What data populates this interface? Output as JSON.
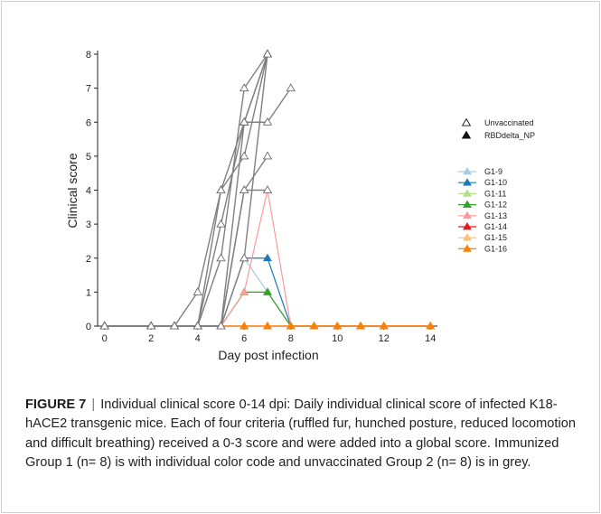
{
  "chart_data": {
    "type": "line",
    "xlabel": "Day post infection",
    "ylabel": "Clinical score",
    "xlim": [
      -0.3,
      14.3
    ],
    "ylim": [
      0,
      8
    ],
    "xticks": [
      0,
      2,
      4,
      6,
      8,
      10,
      12,
      14
    ],
    "yticks": [
      0,
      1,
      2,
      3,
      4,
      5,
      6,
      7,
      8
    ],
    "x": [
      0,
      2,
      3,
      4,
      5,
      6,
      7,
      8,
      9,
      10,
      11,
      12,
      14
    ],
    "group_legend": [
      {
        "label": "Unvaccinated",
        "marker": "open-triangle"
      },
      {
        "label": "RBDdelta_NP",
        "marker": "filled-triangle"
      }
    ],
    "unvaccinated_series": [
      {
        "color": "#808080",
        "x": [
          0,
          2,
          3,
          4,
          5,
          6,
          7
        ],
        "values": [
          0,
          0,
          0,
          0,
          2,
          7,
          8
        ]
      },
      {
        "color": "#808080",
        "x": [
          0,
          2,
          3,
          4,
          5,
          6,
          7
        ],
        "values": [
          0,
          0,
          0,
          0,
          3,
          6,
          8
        ]
      },
      {
        "color": "#808080",
        "x": [
          0,
          2,
          3,
          4,
          5,
          6,
          7
        ],
        "values": [
          0,
          0,
          0,
          1,
          4,
          5,
          8
        ]
      },
      {
        "color": "#808080",
        "x": [
          0,
          2,
          3,
          4,
          5,
          6,
          7,
          8
        ],
        "values": [
          0,
          0,
          0,
          0,
          4,
          6,
          6,
          7
        ]
      },
      {
        "color": "#808080",
        "x": [
          0,
          2,
          3,
          4,
          5,
          6,
          7
        ],
        "values": [
          0,
          0,
          0,
          0,
          0,
          4,
          5
        ]
      },
      {
        "color": "#808080",
        "x": [
          0,
          2,
          3,
          4,
          5,
          6,
          7
        ],
        "values": [
          0,
          0,
          0,
          0,
          0,
          2,
          8
        ]
      },
      {
        "color": "#808080",
        "x": [
          0,
          2,
          3,
          4,
          5,
          6,
          7
        ],
        "values": [
          0,
          0,
          0,
          0,
          0,
          6,
          8
        ]
      },
      {
        "color": "#808080",
        "x": [
          0,
          2,
          3,
          4,
          5,
          6,
          7
        ],
        "values": [
          0,
          0,
          0,
          0,
          0,
          4,
          4
        ]
      }
    ],
    "series": [
      {
        "name": "G1-9",
        "color": "#a6cee3",
        "values": [
          0,
          0,
          0,
          0,
          0,
          2,
          1,
          0,
          0,
          0,
          0,
          0,
          0
        ]
      },
      {
        "name": "G1-10",
        "color": "#1f78b4",
        "values": [
          0,
          0,
          0,
          0,
          0,
          2,
          2,
          0,
          0,
          0,
          0,
          0,
          0
        ]
      },
      {
        "name": "G1-11",
        "color": "#b2df8a",
        "values": [
          0,
          0,
          0,
          0,
          0,
          1,
          1,
          0,
          0,
          0,
          0,
          0,
          0
        ]
      },
      {
        "name": "G1-12",
        "color": "#33a02c",
        "values": [
          0,
          0,
          0,
          0,
          0,
          1,
          1,
          0,
          0,
          0,
          0,
          0,
          0
        ]
      },
      {
        "name": "G1-13",
        "color": "#fb9a99",
        "values": [
          0,
          0,
          0,
          0,
          0,
          1,
          4,
          0,
          0,
          0,
          0,
          0,
          0
        ]
      },
      {
        "name": "G1-14",
        "color": "#e31a1c",
        "values": [
          0,
          0,
          0,
          0,
          0,
          0,
          0,
          0,
          0,
          0,
          0,
          0,
          0
        ]
      },
      {
        "name": "G1-15",
        "color": "#fdbf6f",
        "values": [
          0,
          0,
          0,
          0,
          0,
          0,
          0,
          0,
          0,
          0,
          0,
          0,
          0
        ]
      },
      {
        "name": "G1-16",
        "color": "#ff7f00",
        "values": [
          0,
          0,
          0,
          0,
          0,
          0,
          0,
          0,
          0,
          0,
          0,
          0,
          0
        ]
      }
    ]
  },
  "caption": {
    "label": "FIGURE 7",
    "separator": "|",
    "text": "Individual clinical score 0-14 dpi: Daily individual clinical score of infected K18-hACE2 transgenic mice. Each of four criteria (ruffled fur, hunched posture, reduced locomotion and difficult breathing) received a 0-3 score and were added into a global score. Immunized Group 1 (n= 8) is with individual color code and unvaccinated Group 2 (n= 8) is in grey."
  }
}
